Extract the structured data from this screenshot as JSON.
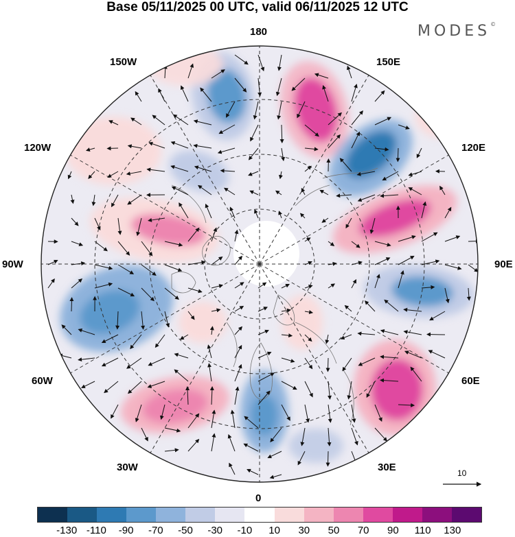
{
  "title": "Base 05/11/2025 00 UTC, valid 06/11/2025 12 UTC",
  "logo": "MODES",
  "logo_mark": "©",
  "longitude_labels": {
    "top": "180",
    "bottom": "0",
    "left": "90W",
    "right": "90E",
    "upper_left_1": "150W",
    "upper_left_2": "120W",
    "upper_right_1": "150E",
    "upper_right_2": "120E",
    "lower_left_1": "60W",
    "lower_left_2": "30W",
    "lower_right_1": "60E",
    "lower_right_2": "30E"
  },
  "reference_vector": "10",
  "colorbar": {
    "colors": [
      "#0d3050",
      "#1a5985",
      "#2e7ab3",
      "#5c99cc",
      "#8fb3dc",
      "#c1cce6",
      "#e6e6f2",
      "#ffffff",
      "#f9dcdc",
      "#f4b4c3",
      "#ed86b0",
      "#e04aa0",
      "#c01a8b",
      "#8c0f7d",
      "#5c0a70"
    ],
    "labels": [
      "-130",
      "-110",
      "-90",
      "-70",
      "-50",
      "-30",
      "-10",
      "10",
      "30",
      "50",
      "70",
      "90",
      "110",
      "130"
    ]
  },
  "anomaly_centers": [
    {
      "name": "pos-north-150E",
      "value": 90,
      "color": "#e04aa0"
    },
    {
      "name": "neg-120E",
      "value": -90,
      "color": "#2e7ab3"
    },
    {
      "name": "pos-100E",
      "value": 90,
      "color": "#e04aa0"
    },
    {
      "name": "neg-80E",
      "value": -70,
      "color": "#5c99cc"
    },
    {
      "name": "pos-60E",
      "value": 90,
      "color": "#e04aa0"
    },
    {
      "name": "neg-15E",
      "value": -70,
      "color": "#5c99cc"
    },
    {
      "name": "pos-40W",
      "value": 70,
      "color": "#ed86b0"
    },
    {
      "name": "neg-80W",
      "value": -70,
      "color": "#5c99cc"
    },
    {
      "name": "pos-110W",
      "value": 70,
      "color": "#ed86b0"
    },
    {
      "name": "neg-165W",
      "value": -70,
      "color": "#5c99cc"
    },
    {
      "name": "pos-135W",
      "value": 30,
      "color": "#f9dcdc"
    }
  ]
}
